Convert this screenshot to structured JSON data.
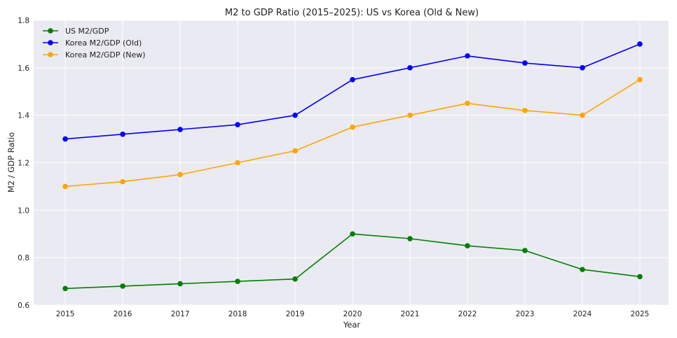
{
  "chart_data": {
    "type": "line",
    "title": "M2 to GDP Ratio (2015–2025): US vs Korea (Old & New)",
    "xlabel": "Year",
    "ylabel": "M2 / GDP Ratio",
    "x": [
      2015,
      2016,
      2017,
      2018,
      2019,
      2020,
      2021,
      2022,
      2023,
      2024,
      2025
    ],
    "x_tick_labels": [
      "2015",
      "2016",
      "2017",
      "2018",
      "2019",
      "2020",
      "2021",
      "2022",
      "2023",
      "2024",
      "2025"
    ],
    "y_tick_labels": [
      "0.6",
      "0.8",
      "1.0",
      "1.2",
      "1.4",
      "1.6",
      "1.8"
    ],
    "ylim": [
      0.6,
      1.8
    ],
    "xlim": [
      2014.45,
      2025.5
    ],
    "grid": true,
    "legend_position": "top-left",
    "background_color": "#eaeaf2",
    "series": [
      {
        "name": "US M2/GDP",
        "color": "#008000",
        "values": [
          0.67,
          0.68,
          0.69,
          0.7,
          0.71,
          0.9,
          0.88,
          0.85,
          0.83,
          0.75,
          0.72
        ]
      },
      {
        "name": "Korea M2/GDP (Old)",
        "color": "#0000ff",
        "values": [
          1.3,
          1.32,
          1.34,
          1.36,
          1.4,
          1.55,
          1.6,
          1.65,
          1.62,
          1.6,
          1.7
        ]
      },
      {
        "name": "Korea M2/GDP (New)",
        "color": "#ffa500",
        "values": [
          1.1,
          1.12,
          1.15,
          1.2,
          1.25,
          1.35,
          1.4,
          1.45,
          1.42,
          1.4,
          1.55
        ]
      }
    ]
  }
}
